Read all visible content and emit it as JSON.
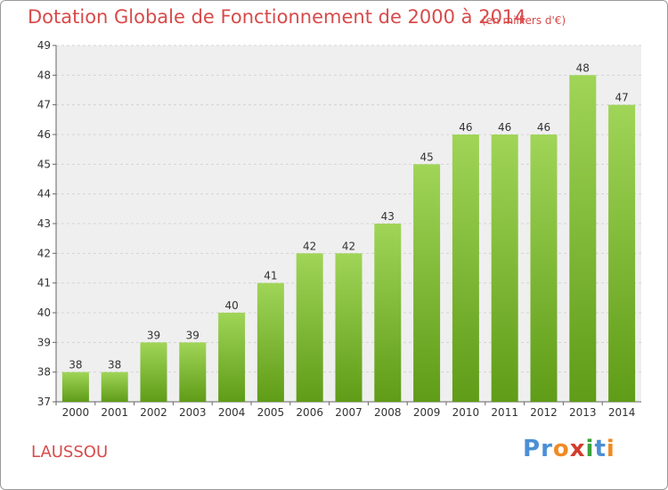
{
  "title": "Dotation Globale de Fonctionnement de 2000 à 2014",
  "subtitle": "(en milliers d'€)",
  "place": "LAUSSOU",
  "logo": {
    "text": "Proxiti",
    "colors": [
      "#4a8fd6",
      "#4a8fd6",
      "#f08a24",
      "#d23c2c",
      "#3aa33a",
      "#4a8fd6",
      "#f08a24"
    ]
  },
  "colors": {
    "title": "#d84a4a",
    "bar_top": "#a0d558",
    "bar_bottom": "#5f9c17",
    "grid": "#d4d4d4",
    "plot_bg": "#efefef"
  },
  "chart_data": {
    "type": "bar",
    "categories": [
      "2000",
      "2001",
      "2002",
      "2003",
      "2004",
      "2005",
      "2006",
      "2007",
      "2008",
      "2009",
      "2010",
      "2011",
      "2012",
      "2013",
      "2014"
    ],
    "values": [
      38,
      38,
      39,
      39,
      40,
      41,
      42,
      42,
      43,
      45,
      46,
      46,
      46,
      48,
      47
    ],
    "title": "Dotation Globale de Fonctionnement de 2000 à 2014",
    "subtitle": "(en milliers d'€)",
    "ylim": [
      37,
      49
    ],
    "yticks": [
      37,
      38,
      39,
      40,
      41,
      42,
      43,
      44,
      45,
      46,
      47,
      48,
      49
    ],
    "grid": true
  }
}
